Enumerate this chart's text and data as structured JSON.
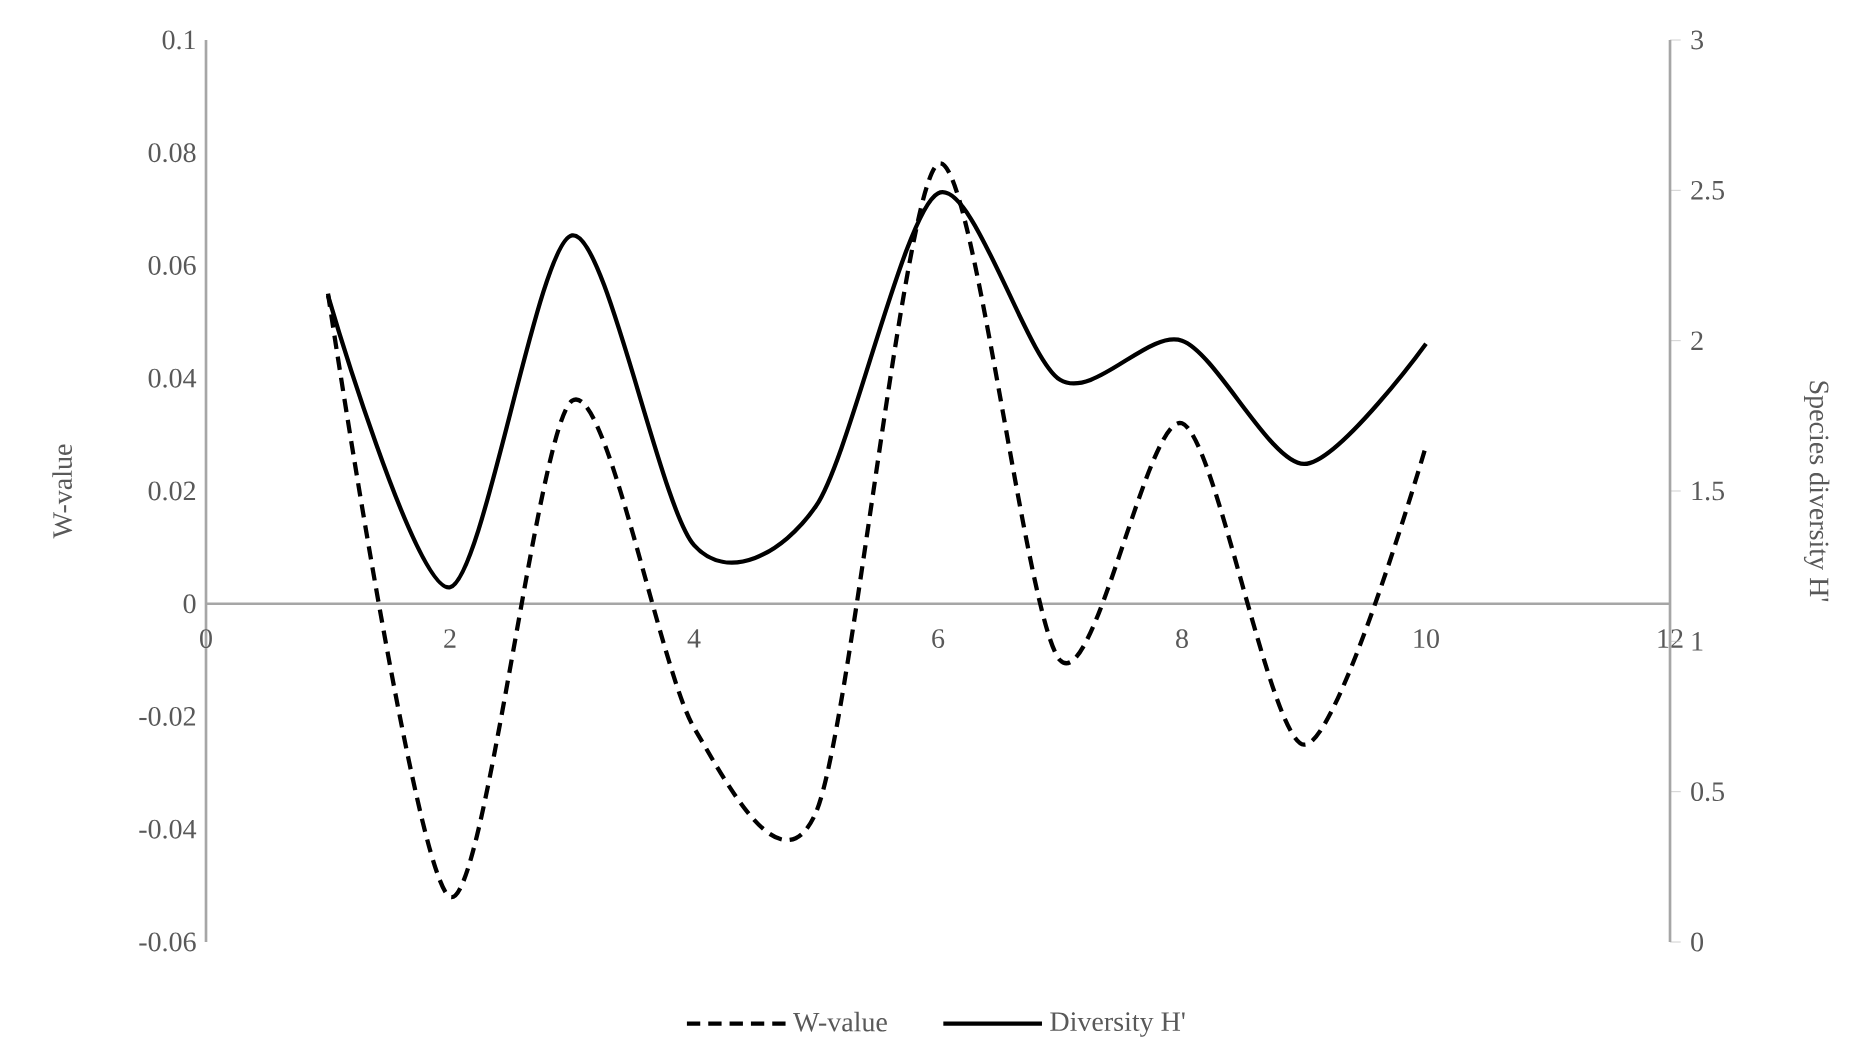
{
  "chart_data": {
    "type": "line",
    "x": [
      1,
      2,
      3,
      4,
      5,
      6,
      7,
      8,
      9,
      10
    ],
    "series": [
      {
        "name": "W-value",
        "color": "#000000",
        "line_style": "dashed",
        "values": [
          0.055,
          -0.052,
          0.036,
          -0.022,
          -0.037,
          0.078,
          -0.01,
          0.032,
          -0.025,
          0.028
        ]
      },
      {
        "name": "Diversity H'",
        "color": "#000000",
        "line_style": "solid",
        "axis": "y2",
        "values": [
          2.15,
          1.18,
          2.35,
          1.32,
          1.45,
          2.49,
          1.87,
          2.0,
          1.59,
          1.99
        ]
      }
    ],
    "xlim": [
      0,
      12
    ],
    "xticks": [
      0,
      2,
      4,
      6,
      8,
      10,
      12
    ],
    "ylim": [
      -0.06,
      0.1
    ],
    "yticks": [
      -0.06,
      -0.04,
      -0.02,
      0,
      0.02,
      0.04,
      0.06,
      0.08,
      0.1
    ],
    "y2lim": [
      0,
      3
    ],
    "y2ticks": [
      0,
      0.5,
      1,
      1.5,
      2,
      2.5,
      3
    ],
    "ylabel": "W-value",
    "y2label": "Species diversity H'",
    "legend": "bottom",
    "marker": "none",
    "grid": false
  }
}
